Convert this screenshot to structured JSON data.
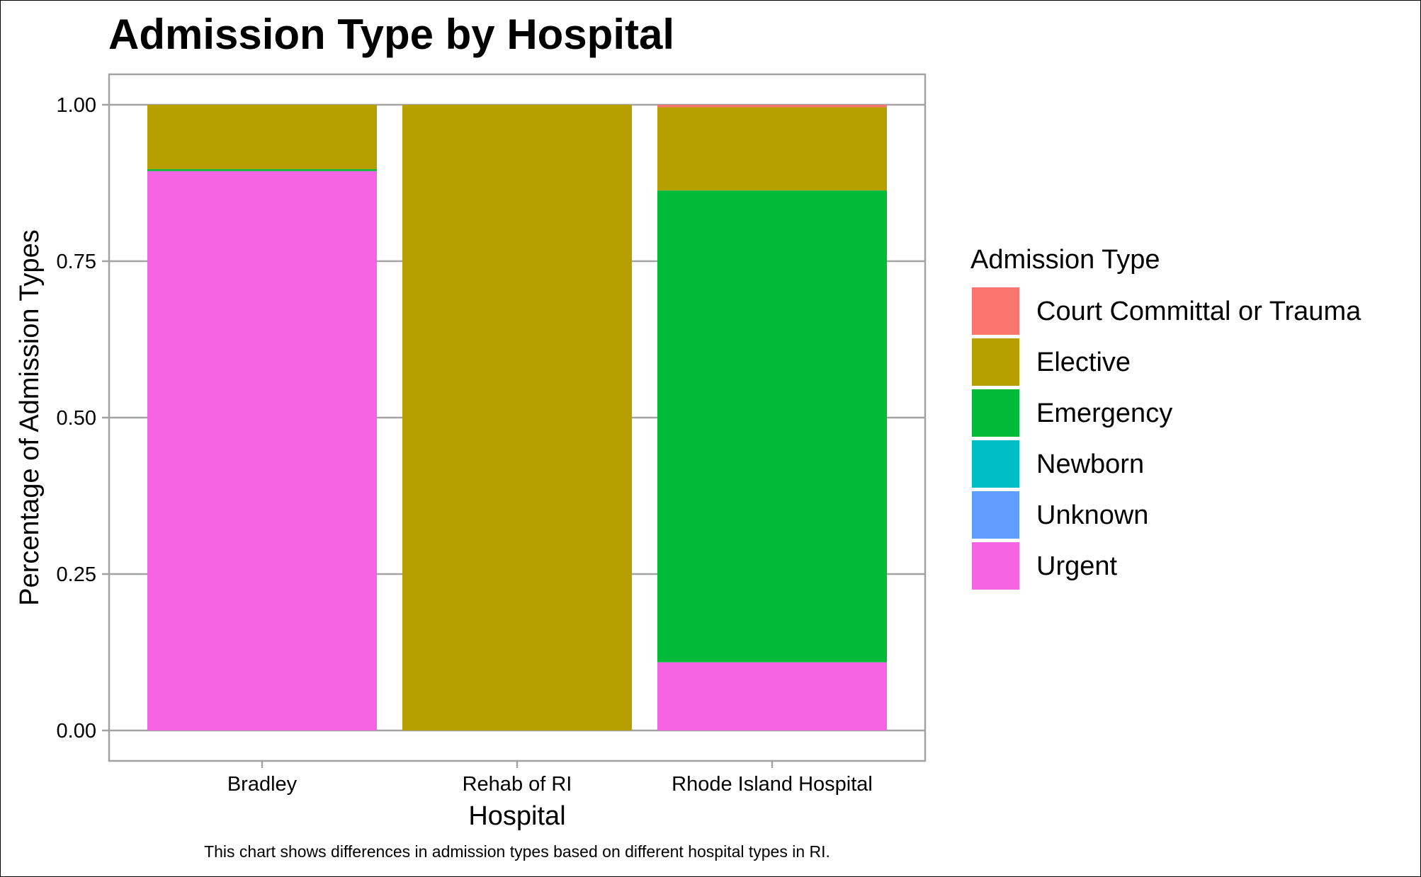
{
  "chart_data": {
    "type": "bar",
    "stacked": true,
    "title": "Admission Type by Hospital",
    "xlabel": "Hospital",
    "ylabel": "Percentage of Admission Types",
    "caption": "This chart shows differences in admission types based on different hospital types in RI.",
    "categories": [
      "Bradley",
      "Rehab of RI",
      "Rhode Island Hospital"
    ],
    "ylim": [
      0,
      1
    ],
    "y_ticks": [
      "0.00",
      "0.25",
      "0.50",
      "0.75",
      "1.00"
    ],
    "y_tick_values": [
      0,
      0.25,
      0.5,
      0.75,
      1.0
    ],
    "grid": true,
    "legend": {
      "title": "Admission Type",
      "position": "right"
    },
    "series": [
      {
        "name": "Urgent",
        "color": "#F564E3",
        "values": [
          0.894,
          0.0,
          0.109
        ]
      },
      {
        "name": "Unknown",
        "color": "#619CFF",
        "values": [
          0.0,
          0.0,
          0.0
        ]
      },
      {
        "name": "Newborn",
        "color": "#00BFC4",
        "values": [
          0.0,
          0.0,
          0.0
        ]
      },
      {
        "name": "Emergency",
        "color": "#00BA38",
        "values": [
          0.003,
          0.0,
          0.754
        ]
      },
      {
        "name": "Elective",
        "color": "#B79F00",
        "values": [
          0.103,
          1.0,
          0.133
        ]
      },
      {
        "name": "Court Committal or Trauma",
        "color": "#F8766D",
        "values": [
          0.0,
          0.0,
          0.004
        ]
      }
    ],
    "legend_order": [
      "Court Committal or Trauma",
      "Elective",
      "Emergency",
      "Newborn",
      "Unknown",
      "Urgent"
    ]
  }
}
